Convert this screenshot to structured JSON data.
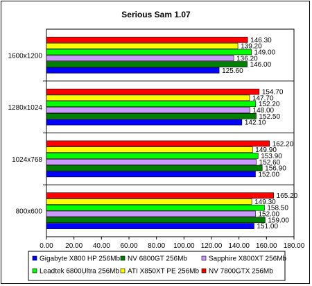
{
  "chart_data": {
    "type": "bar",
    "orientation": "horizontal",
    "title": "Serious Sam 1.07",
    "xlabel": "",
    "ylabel": "",
    "xlim": [
      0,
      180
    ],
    "x_ticks": [
      "0.00",
      "20.00",
      "40.00",
      "60.00",
      "80.00",
      "100.00",
      "120.00",
      "140.00",
      "160.00",
      "180.00"
    ],
    "grid": false,
    "legend_position": "bottom",
    "categories": [
      "1600x1200",
      "1280x1024",
      "1024x768",
      "800x600"
    ],
    "series": [
      {
        "name": "Gigabyte X800 HP 256Mb",
        "color": "#0000ff",
        "values": [
          125.6,
          142.1,
          152.0,
          151.0
        ],
        "labels": [
          "125.60",
          "142.10",
          "152.00",
          "151.00"
        ]
      },
      {
        "name": "NV 6800GT 256Mb",
        "color": "#008000",
        "values": [
          146.0,
          152.5,
          156.9,
          159.0
        ],
        "labels": [
          "146.00",
          "152.50",
          "156.90",
          "159.00"
        ]
      },
      {
        "name": "Sapphire X800XT 256Mb",
        "color": "#cc99ff",
        "values": [
          136.2,
          148.0,
          152.6,
          152.0
        ],
        "labels": [
          "136.20",
          "148.00",
          "152.60",
          "152.00"
        ]
      },
      {
        "name": "Leadtek 6800Ultra 256Mb",
        "color": "#00ff00",
        "values": [
          149.0,
          152.2,
          153.9,
          158.5
        ],
        "labels": [
          "149.00",
          "152.20",
          "153.90",
          "158.50"
        ]
      },
      {
        "name": "ATI X850XT PE 256Mb",
        "color": "#ffff00",
        "values": [
          139.2,
          147.7,
          149.9,
          149.3
        ],
        "labels": [
          "139.20",
          "147.70",
          "149.90",
          "149.30"
        ]
      },
      {
        "name": "NV 7800GTX 256Mb",
        "color": "#ff0000",
        "values": [
          146.3,
          154.7,
          162.2,
          165.2
        ],
        "labels": [
          "146.30",
          "154.70",
          "162.20",
          "165.20"
        ]
      }
    ]
  }
}
